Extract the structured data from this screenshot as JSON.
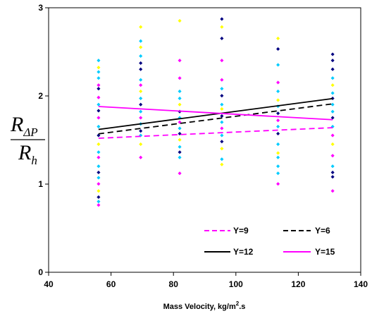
{
  "chart_data": {
    "type": "scatter",
    "xlabel": "Mass Velocity, kg/m",
    "xlabel_sup": "2",
    "xlabel_suffix": ".s",
    "ylabel": {
      "numerator_main": "R",
      "numerator_sub": "ΔP",
      "denominator_main": "R",
      "denominator_sub": "h"
    },
    "xlim": [
      40,
      140
    ],
    "ylim": [
      0,
      3
    ],
    "x_ticks": [
      "40",
      "60",
      "80",
      "100",
      "120",
      "140"
    ],
    "y_ticks": [
      "0",
      "1",
      "2",
      "3"
    ],
    "grid": false,
    "legend_position": "bottom-right",
    "scatter_columns": [
      {
        "x": 56,
        "points": [
          {
            "y": 0.76,
            "color": "#ff00ff"
          },
          {
            "y": 0.8,
            "color": "#00ccff"
          },
          {
            "y": 0.85,
            "color": "#000080"
          },
          {
            "y": 0.92,
            "color": "#ffff00"
          },
          {
            "y": 1.0,
            "color": "#ff00ff"
          },
          {
            "y": 1.07,
            "color": "#00ccff"
          },
          {
            "y": 1.13,
            "color": "#000080"
          },
          {
            "y": 1.2,
            "color": "#00ccff"
          },
          {
            "y": 1.3,
            "color": "#ff00ff"
          },
          {
            "y": 1.36,
            "color": "#00ccff"
          },
          {
            "y": 1.45,
            "color": "#ffff00"
          },
          {
            "y": 1.55,
            "color": "#000080"
          },
          {
            "y": 1.65,
            "color": "#00ccff"
          },
          {
            "y": 1.75,
            "color": "#ff00ff"
          },
          {
            "y": 1.83,
            "color": "#000080"
          },
          {
            "y": 1.9,
            "color": "#00ccff"
          },
          {
            "y": 1.98,
            "color": "#ff00ff"
          },
          {
            "y": 2.08,
            "color": "#000080"
          },
          {
            "y": 2.12,
            "color": "#ff00ff"
          },
          {
            "y": 2.2,
            "color": "#00ccff"
          },
          {
            "y": 2.27,
            "color": "#00ccff"
          },
          {
            "y": 2.32,
            "color": "#ffff00"
          },
          {
            "y": 2.4,
            "color": "#00ccff"
          }
        ]
      },
      {
        "x": 69.5,
        "points": [
          {
            "y": 1.3,
            "color": "#ff00ff"
          },
          {
            "y": 1.45,
            "color": "#ffff00"
          },
          {
            "y": 1.55,
            "color": "#00ccff"
          },
          {
            "y": 1.6,
            "color": "#000080"
          },
          {
            "y": 1.68,
            "color": "#00ccff"
          },
          {
            "y": 1.75,
            "color": "#ff00ff"
          },
          {
            "y": 1.82,
            "color": "#00ccff"
          },
          {
            "y": 1.9,
            "color": "#000080"
          },
          {
            "y": 1.97,
            "color": "#00ccff"
          },
          {
            "y": 2.05,
            "color": "#ffff00"
          },
          {
            "y": 2.12,
            "color": "#ff00ff"
          },
          {
            "y": 2.18,
            "color": "#00ccff"
          },
          {
            "y": 2.3,
            "color": "#000080"
          },
          {
            "y": 2.37,
            "color": "#000080"
          },
          {
            "y": 2.45,
            "color": "#00ccff"
          },
          {
            "y": 2.55,
            "color": "#ffff00"
          },
          {
            "y": 2.62,
            "color": "#00ccff"
          },
          {
            "y": 2.78,
            "color": "#ffff00"
          }
        ]
      },
      {
        "x": 82,
        "points": [
          {
            "y": 1.12,
            "color": "#ff00ff"
          },
          {
            "y": 1.3,
            "color": "#00ccff"
          },
          {
            "y": 1.36,
            "color": "#000080"
          },
          {
            "y": 1.42,
            "color": "#00ccff"
          },
          {
            "y": 1.5,
            "color": "#ffff00"
          },
          {
            "y": 1.57,
            "color": "#000080"
          },
          {
            "y": 1.63,
            "color": "#00ccff"
          },
          {
            "y": 1.7,
            "color": "#ff00ff"
          },
          {
            "y": 1.75,
            "color": "#00ccff"
          },
          {
            "y": 1.82,
            "color": "#000080"
          },
          {
            "y": 1.9,
            "color": "#ffff00"
          },
          {
            "y": 1.97,
            "color": "#00ccff"
          },
          {
            "y": 2.05,
            "color": "#00ccff"
          },
          {
            "y": 2.2,
            "color": "#ff00ff"
          },
          {
            "y": 2.4,
            "color": "#ff00ff"
          },
          {
            "y": 2.85,
            "color": "#ffff00"
          }
        ]
      },
      {
        "x": 95.5,
        "points": [
          {
            "y": 1.22,
            "color": "#ffff00"
          },
          {
            "y": 1.28,
            "color": "#00ccff"
          },
          {
            "y": 1.4,
            "color": "#ffff00"
          },
          {
            "y": 1.48,
            "color": "#000080"
          },
          {
            "y": 1.55,
            "color": "#00ccff"
          },
          {
            "y": 1.63,
            "color": "#ff00ff"
          },
          {
            "y": 1.7,
            "color": "#00ccff"
          },
          {
            "y": 1.77,
            "color": "#000080"
          },
          {
            "y": 1.85,
            "color": "#ffff00"
          },
          {
            "y": 1.9,
            "color": "#00ccff"
          },
          {
            "y": 2.0,
            "color": "#000080"
          },
          {
            "y": 2.08,
            "color": "#00ccff"
          },
          {
            "y": 2.18,
            "color": "#ff00ff"
          },
          {
            "y": 2.4,
            "color": "#ff00ff"
          },
          {
            "y": 2.65,
            "color": "#000080"
          },
          {
            "y": 2.78,
            "color": "#ffff00"
          },
          {
            "y": 2.87,
            "color": "#000080"
          }
        ]
      },
      {
        "x": 113.5,
        "points": [
          {
            "y": 1.0,
            "color": "#ff00ff"
          },
          {
            "y": 1.12,
            "color": "#00ccff"
          },
          {
            "y": 1.2,
            "color": "#00ccff"
          },
          {
            "y": 1.3,
            "color": "#00ccff"
          },
          {
            "y": 1.35,
            "color": "#ffff00"
          },
          {
            "y": 1.45,
            "color": "#00ccff"
          },
          {
            "y": 1.57,
            "color": "#000080"
          },
          {
            "y": 1.65,
            "color": "#00ccff"
          },
          {
            "y": 1.72,
            "color": "#ff00ff"
          },
          {
            "y": 1.8,
            "color": "#000080"
          },
          {
            "y": 1.88,
            "color": "#00ccff"
          },
          {
            "y": 1.95,
            "color": "#ffff00"
          },
          {
            "y": 2.05,
            "color": "#00ccff"
          },
          {
            "y": 2.15,
            "color": "#ff00ff"
          },
          {
            "y": 2.35,
            "color": "#00ccff"
          },
          {
            "y": 2.53,
            "color": "#000080"
          },
          {
            "y": 2.65,
            "color": "#ffff00"
          }
        ]
      },
      {
        "x": 131,
        "points": [
          {
            "y": 0.92,
            "color": "#ff00ff"
          },
          {
            "y": 1.08,
            "color": "#000080"
          },
          {
            "y": 1.13,
            "color": "#000080"
          },
          {
            "y": 1.2,
            "color": "#00ccff"
          },
          {
            "y": 1.32,
            "color": "#ff00ff"
          },
          {
            "y": 1.45,
            "color": "#ffff00"
          },
          {
            "y": 1.55,
            "color": "#ff00ff"
          },
          {
            "y": 1.65,
            "color": "#00ccff"
          },
          {
            "y": 1.75,
            "color": "#000080"
          },
          {
            "y": 1.82,
            "color": "#00ccff"
          },
          {
            "y": 1.9,
            "color": "#00ccff"
          },
          {
            "y": 1.97,
            "color": "#000080"
          },
          {
            "y": 2.03,
            "color": "#00ccff"
          },
          {
            "y": 2.12,
            "color": "#ffff00"
          },
          {
            "y": 2.2,
            "color": "#00ccff"
          },
          {
            "y": 2.3,
            "color": "#000080"
          },
          {
            "y": 2.4,
            "color": "#000080"
          },
          {
            "y": 2.47,
            "color": "#000080"
          }
        ]
      }
    ],
    "series": [
      {
        "name": "Y=9",
        "color": "#ff00ff",
        "dash": "dashed",
        "x": [
          56,
          131
        ],
        "y": [
          1.52,
          1.64
        ]
      },
      {
        "name": "Y=6",
        "color": "#000000",
        "dash": "dashed",
        "x": [
          56,
          131
        ],
        "y": [
          1.57,
          1.91
        ]
      },
      {
        "name": "Y=12",
        "color": "#000000",
        "dash": "solid",
        "x": [
          56,
          131
        ],
        "y": [
          1.62,
          1.97
        ]
      },
      {
        "name": "Y=15",
        "color": "#ff00ff",
        "dash": "solid",
        "x": [
          56,
          131
        ],
        "y": [
          1.88,
          1.73
        ]
      }
    ]
  }
}
